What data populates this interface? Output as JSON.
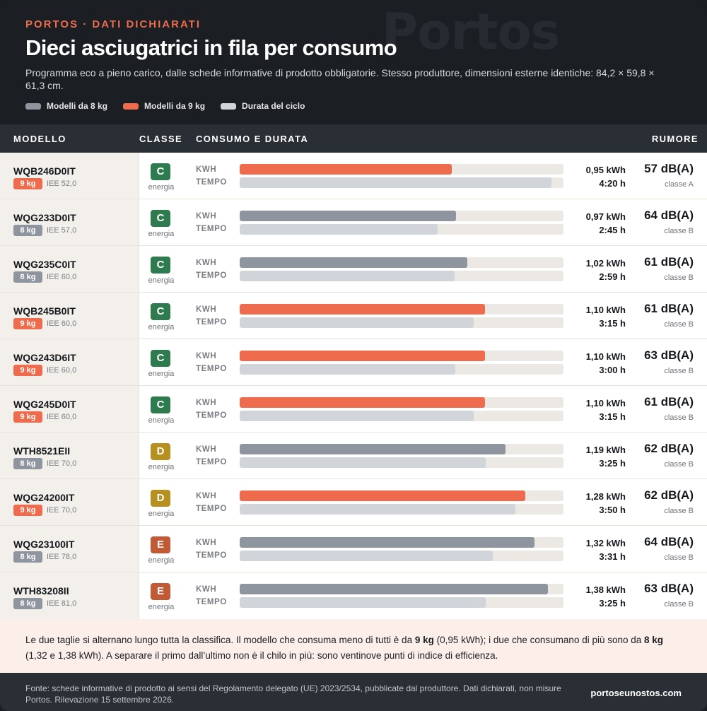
{
  "header": {
    "kicker": "PORTOS · DATI DICHIARATI",
    "watermark": "Portos",
    "title": "Dieci asciugatrici in fila per consumo",
    "subtitle": "Programma eco a pieno carico, dalle schede informative di prodotto obbligatorie. Stesso produttore, dimensioni esterne identiche: 84,2 × 59,8 × 61,3 cm."
  },
  "legend": [
    {
      "label": "Modelli da 8 kg",
      "color": "#8e959e"
    },
    {
      "label": "Modelli da 9 kg",
      "color": "#ee6c4d"
    },
    {
      "label": "Durata del ciclo",
      "color": "#d1d5da"
    }
  ],
  "table_header": {
    "model": "MODELLO",
    "class": "CLASSE",
    "consumption": "CONSUMO E DURATA",
    "noise": "RUMORE"
  },
  "labels": {
    "energy": "energia",
    "kwh": "KWH",
    "time": "TEMPO"
  },
  "colors": {
    "capacity_8": "#8e959e",
    "capacity_9": "#ee6c4d",
    "duration": "#d1d5da",
    "class_C": "#2e7b4f",
    "class_D": "#b8901f",
    "class_E": "#c35a36"
  },
  "chart_data": {
    "type": "bar",
    "kwh_max": 1.45,
    "minutes_max": 270,
    "rows": [
      {
        "model": "WQB246D0IT",
        "capacity": "9 kg",
        "capacity_kg": 9,
        "iee": "IEE 52,0",
        "energy_class": "C",
        "kwh": 0.95,
        "kwh_label": "0,95 kWh",
        "minutes": 260,
        "time_label": "4:20 h",
        "noise": "57 dB(A)",
        "noise_class": "classe A"
      },
      {
        "model": "WQG233D0IT",
        "capacity": "8 kg",
        "capacity_kg": 8,
        "iee": "IEE 57,0",
        "energy_class": "C",
        "kwh": 0.97,
        "kwh_label": "0,97 kWh",
        "minutes": 165,
        "time_label": "2:45 h",
        "noise": "64 dB(A)",
        "noise_class": "classe B"
      },
      {
        "model": "WQG235C0IT",
        "capacity": "8 kg",
        "capacity_kg": 8,
        "iee": "IEE 60,0",
        "energy_class": "C",
        "kwh": 1.02,
        "kwh_label": "1,02 kWh",
        "minutes": 179,
        "time_label": "2:59 h",
        "noise": "61 dB(A)",
        "noise_class": "classe B"
      },
      {
        "model": "WQB245B0IT",
        "capacity": "9 kg",
        "capacity_kg": 9,
        "iee": "IEE 60,0",
        "energy_class": "C",
        "kwh": 1.1,
        "kwh_label": "1,10 kWh",
        "minutes": 195,
        "time_label": "3:15 h",
        "noise": "61 dB(A)",
        "noise_class": "classe B"
      },
      {
        "model": "WQG243D6IT",
        "capacity": "9 kg",
        "capacity_kg": 9,
        "iee": "IEE 60,0",
        "energy_class": "C",
        "kwh": 1.1,
        "kwh_label": "1,10 kWh",
        "minutes": 180,
        "time_label": "3:00 h",
        "noise": "63 dB(A)",
        "noise_class": "classe B"
      },
      {
        "model": "WQG245D0IT",
        "capacity": "9 kg",
        "capacity_kg": 9,
        "iee": "IEE 60,0",
        "energy_class": "C",
        "kwh": 1.1,
        "kwh_label": "1,10 kWh",
        "minutes": 195,
        "time_label": "3:15 h",
        "noise": "61 dB(A)",
        "noise_class": "classe B"
      },
      {
        "model": "WTH8521EII",
        "capacity": "8 kg",
        "capacity_kg": 8,
        "iee": "IEE 70,0",
        "energy_class": "D",
        "kwh": 1.19,
        "kwh_label": "1,19 kWh",
        "minutes": 205,
        "time_label": "3:25 h",
        "noise": "62 dB(A)",
        "noise_class": "classe B"
      },
      {
        "model": "WQG24200IT",
        "capacity": "9 kg",
        "capacity_kg": 9,
        "iee": "IEE 70,0",
        "energy_class": "D",
        "kwh": 1.28,
        "kwh_label": "1,28 kWh",
        "minutes": 230,
        "time_label": "3:50 h",
        "noise": "62 dB(A)",
        "noise_class": "classe B"
      },
      {
        "model": "WQG23100IT",
        "capacity": "8 kg",
        "capacity_kg": 8,
        "iee": "IEE 78,0",
        "energy_class": "E",
        "kwh": 1.32,
        "kwh_label": "1,32 kWh",
        "minutes": 211,
        "time_label": "3:31 h",
        "noise": "64 dB(A)",
        "noise_class": "classe B"
      },
      {
        "model": "WTH83208II",
        "capacity": "8 kg",
        "capacity_kg": 8,
        "iee": "IEE 81,0",
        "energy_class": "E",
        "kwh": 1.38,
        "kwh_label": "1,38 kWh",
        "minutes": 205,
        "time_label": "3:25 h",
        "noise": "63 dB(A)",
        "noise_class": "classe B"
      }
    ]
  },
  "note": {
    "t1": "Le due taglie si alternano lungo tutta la classifica. Il modello che consuma meno di tutti è da ",
    "b1": "9 kg",
    "t2": " (0,95 kWh); i due che consumano di più sono da ",
    "b2": "8 kg",
    "t3": " (1,32 e 1,38 kWh). A separare il primo dall’ultimo non è il chilo in più: sono ventinove punti di indice di efficienza."
  },
  "footer": {
    "source": "Fonte: schede informative di prodotto ai sensi del Regolamento delegato (UE) 2023/2534, pubblicate dal produttore. Dati dichiarati, non misure Portos. Rilevazione 15 settembre 2026.",
    "site": "portoseunostos.com"
  }
}
